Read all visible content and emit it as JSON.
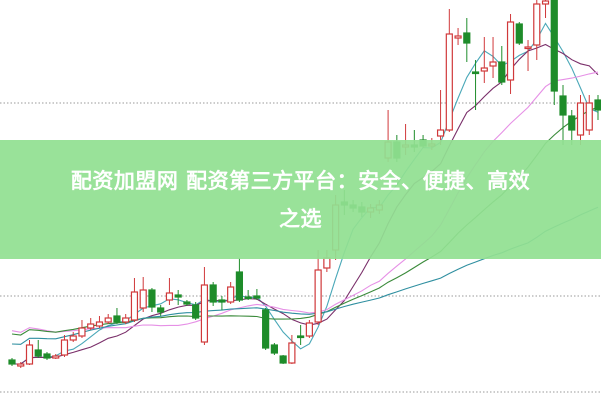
{
  "headline": {
    "line1": "配资加盟网 配资第三方平台：安全、便捷、高效",
    "line2": "之选",
    "banner_color": "#92e092"
  },
  "chart_data": {
    "type": "candlestick",
    "grid": "horizontal dotted",
    "up_color": "#d0383a",
    "down_color": "#1e8c2a",
    "moving_averages": [
      {
        "period": 5,
        "color": "#4aa8b8"
      },
      {
        "period": 10,
        "color": "#7a2f6a"
      },
      {
        "period": 20,
        "color": "#e690e6"
      },
      {
        "period": 30,
        "color": "#3a8a3a"
      },
      {
        "period": 60,
        "color": "#2f8fa0"
      }
    ],
    "candles_ochl": [
      [
        40,
        36,
        42,
        34
      ],
      [
        34,
        36,
        38,
        32
      ],
      [
        36,
        55,
        60,
        35
      ],
      [
        50,
        44,
        60,
        42
      ],
      [
        46,
        42,
        48,
        40
      ],
      [
        42,
        44,
        46,
        41
      ],
      [
        45,
        60,
        65,
        43
      ],
      [
        60,
        64,
        68,
        58
      ],
      [
        64,
        72,
        80,
        62
      ],
      [
        72,
        76,
        82,
        70
      ],
      [
        74,
        78,
        84,
        72
      ],
      [
        78,
        82,
        86,
        76
      ],
      [
        84,
        78,
        92,
        76
      ],
      [
        78,
        82,
        86,
        76
      ],
      [
        80,
        108,
        122,
        78
      ],
      [
        92,
        110,
        123,
        88
      ],
      [
        110,
        93,
        112,
        88
      ],
      [
        92,
        88,
        95,
        84
      ],
      [
        100,
        107,
        122,
        95
      ],
      [
        105,
        103,
        110,
        95
      ],
      [
        98,
        96,
        100,
        94
      ],
      [
        95,
        82,
        98,
        80
      ],
      [
        58,
        115,
        133,
        55
      ],
      [
        115,
        98,
        118,
        94
      ],
      [
        100,
        98,
        104,
        90
      ],
      [
        98,
        113,
        118,
        96
      ],
      [
        128,
        100,
        142,
        98
      ],
      [
        103,
        102,
        110,
        100
      ],
      [
        104,
        102,
        111,
        100
      ],
      [
        90,
        52,
        92,
        50
      ],
      [
        55,
        47,
        57,
        45
      ],
      [
        44,
        37,
        45,
        36
      ],
      [
        37,
        57,
        65,
        36
      ],
      [
        64,
        63,
        75,
        55
      ],
      [
        64,
        77,
        80,
        62
      ],
      [
        78,
        130,
        150,
        75
      ],
      [
        132,
        142,
        150,
        128
      ],
      [
        150,
        195,
        205,
        140
      ],
      [
        198,
        195,
        210,
        185
      ],
      [
        195,
        192,
        200,
        188
      ],
      [
        193,
        188,
        198,
        183
      ],
      [
        188,
        192,
        196,
        182
      ],
      [
        190,
        195,
        200,
        186
      ],
      [
        242,
        258,
        290,
        238
      ],
      [
        258,
        242,
        265,
        238
      ],
      [
        253,
        255,
        276,
        245
      ],
      [
        255,
        253,
        270,
        248
      ],
      [
        260,
        254,
        265,
        252
      ],
      [
        254,
        256,
        262,
        250
      ],
      [
        264,
        270,
        310,
        255
      ],
      [
        270,
        366,
        391,
        268
      ],
      [
        362,
        364,
        372,
        355
      ],
      [
        367,
        357,
        382,
        338
      ],
      [
        328,
        327,
        340,
        290
      ],
      [
        329,
        332,
        363,
        317
      ],
      [
        334,
        338,
        363,
        322
      ],
      [
        338,
        318,
        354,
        315
      ],
      [
        320,
        378,
        386,
        306
      ],
      [
        376,
        357,
        378,
        355
      ],
      [
        352,
        353,
        360,
        329
      ],
      [
        355,
        396,
        400,
        340
      ],
      [
        396,
        399,
        400,
        382
      ],
      [
        400,
        309,
        400,
        295
      ],
      [
        304,
        285,
        315,
        255
      ],
      [
        284,
        270,
        290,
        255
      ],
      [
        265,
        297,
        305,
        255
      ],
      [
        270,
        297,
        305,
        265
      ],
      [
        300,
        290,
        305,
        280
      ]
    ]
  }
}
